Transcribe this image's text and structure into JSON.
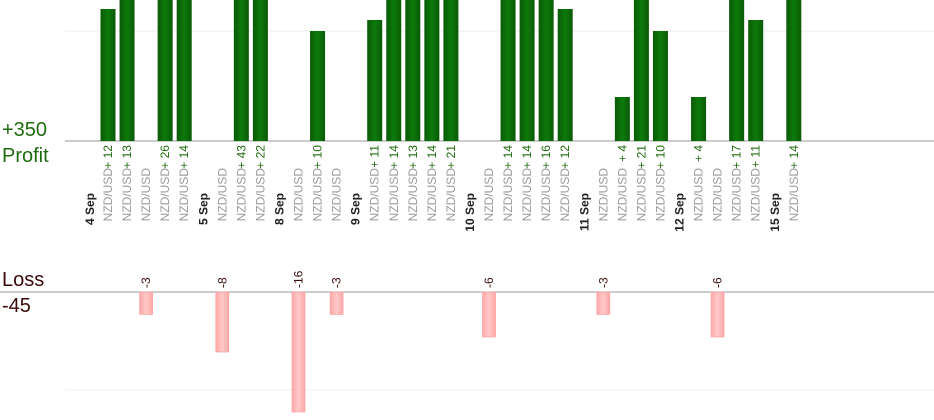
{
  "summary": {
    "profit_total": "+350",
    "profit_label": "Profit",
    "loss_label": "Loss",
    "loss_total": "-45"
  },
  "colors": {
    "profit_bar": "#0b6a08",
    "profit_text": "#1f6b0f",
    "loss_bar": "#ffb6b6",
    "loss_text": "#3b0a0a",
    "pair_text": "#9a9a9a",
    "date_text": "#222222",
    "axis_line": "#9a9a9a",
    "grid_line": "#ececec"
  },
  "chart_data": {
    "type": "bar",
    "title": "",
    "ylim_profit": [
      0,
      13
    ],
    "ylim_loss": [
      0,
      12
    ],
    "bars": [
      {
        "pair": "NZD/USD",
        "value": 12
      },
      {
        "pair": "NZD/USD",
        "value": 13
      },
      {
        "pair": "NZD/USD",
        "value": -3
      },
      {
        "pair": "NZD/USD",
        "value": 26
      },
      {
        "pair": "NZD/USD",
        "value": 14
      },
      {
        "pair": "NZD/USD",
        "value": -8
      },
      {
        "pair": "NZD/USD",
        "value": 43
      },
      {
        "pair": "NZD/USD",
        "value": 22
      },
      {
        "pair": "NZD/USD",
        "value": -16
      },
      {
        "pair": "NZD/USD",
        "value": 10
      },
      {
        "pair": "NZD/USD",
        "value": -3
      },
      {
        "pair": "NZD/USD",
        "value": 11
      },
      {
        "pair": "NZD/USD",
        "value": 14
      },
      {
        "pair": "NZD/USD",
        "value": 13
      },
      {
        "pair": "NZD/USD",
        "value": 14
      },
      {
        "pair": "NZD/USD",
        "value": 21
      },
      {
        "pair": "NZD/USD",
        "value": -6
      },
      {
        "pair": "NZD/USD",
        "value": 14
      },
      {
        "pair": "NZD/USD",
        "value": 14
      },
      {
        "pair": "NZD/USD",
        "value": 16
      },
      {
        "pair": "NZD/USD",
        "value": 12
      },
      {
        "pair": "NZD/USD",
        "value": -3
      },
      {
        "pair": "NZD/USD",
        "value": 4
      },
      {
        "pair": "NZD/USD",
        "value": 21
      },
      {
        "pair": "NZD/USD",
        "value": 10
      },
      {
        "pair": "NZD/USD",
        "value": 4
      },
      {
        "pair": "NZD/USD",
        "value": -6
      },
      {
        "pair": "NZD/USD",
        "value": 17
      },
      {
        "pair": "NZD/USD",
        "value": 11
      },
      {
        "pair": "NZD/USD",
        "value": 14
      }
    ],
    "dates": [
      {
        "label": "4 Sep",
        "before_bar": 0
      },
      {
        "label": "5 Sep",
        "before_bar": 5
      },
      {
        "label": "8 Sep",
        "before_bar": 8
      },
      {
        "label": "9 Sep",
        "before_bar": 11
      },
      {
        "label": "10 Sep",
        "before_bar": 16
      },
      {
        "label": "11 Sep",
        "before_bar": 21
      },
      {
        "label": "12 Sep",
        "before_bar": 25
      },
      {
        "label": "15 Sep",
        "before_bar": 29
      }
    ]
  }
}
